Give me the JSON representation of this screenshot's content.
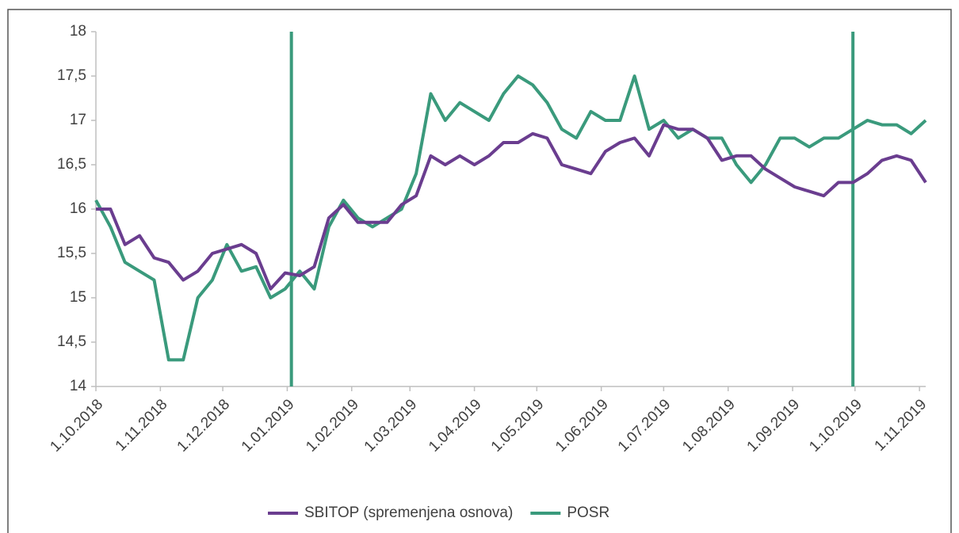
{
  "chart_data": {
    "type": "line",
    "x": [
      "2018-10-01",
      "2018-10-08",
      "2018-10-15",
      "2018-10-22",
      "2018-10-29",
      "2018-11-05",
      "2018-11-12",
      "2018-11-19",
      "2018-11-26",
      "2018-12-03",
      "2018-12-10",
      "2018-12-17",
      "2018-12-24",
      "2018-12-31",
      "2019-01-07",
      "2019-01-14",
      "2019-01-21",
      "2019-01-28",
      "2019-02-04",
      "2019-02-11",
      "2019-02-18",
      "2019-02-25",
      "2019-03-04",
      "2019-03-11",
      "2019-03-18",
      "2019-03-25",
      "2019-04-01",
      "2019-04-08",
      "2019-04-15",
      "2019-04-22",
      "2019-04-29",
      "2019-05-06",
      "2019-05-13",
      "2019-05-20",
      "2019-05-27",
      "2019-06-03",
      "2019-06-10",
      "2019-06-17",
      "2019-06-24",
      "2019-07-01",
      "2019-07-08",
      "2019-07-15",
      "2019-07-22",
      "2019-07-29",
      "2019-08-05",
      "2019-08-12",
      "2019-08-19",
      "2019-08-26",
      "2019-09-02",
      "2019-09-09",
      "2019-09-16",
      "2019-09-23",
      "2019-09-30",
      "2019-10-07",
      "2019-10-14",
      "2019-10-21",
      "2019-10-28",
      "2019-11-04"
    ],
    "series": [
      {
        "name": "SBITOP (spremenjena osnova)",
        "color": "#6a3d8f",
        "values": [
          16.0,
          16.0,
          15.6,
          15.7,
          15.45,
          15.4,
          15.2,
          15.3,
          15.5,
          15.55,
          15.6,
          15.5,
          15.1,
          15.28,
          15.25,
          15.35,
          15.9,
          16.05,
          15.85,
          15.85,
          15.85,
          16.05,
          16.15,
          16.6,
          16.5,
          16.6,
          16.5,
          16.6,
          16.75,
          16.75,
          16.85,
          16.8,
          16.5,
          16.45,
          16.4,
          16.65,
          16.75,
          16.8,
          16.6,
          16.95,
          16.9,
          16.9,
          16.8,
          16.55,
          16.6,
          16.6,
          16.45,
          16.35,
          16.25,
          16.2,
          16.15,
          16.3,
          16.3,
          16.4,
          16.55,
          16.6,
          16.55,
          16.3
        ]
      },
      {
        "name": "POSR",
        "color": "#3a9a7c",
        "values": [
          16.1,
          15.8,
          15.4,
          15.3,
          15.2,
          14.3,
          14.3,
          15.0,
          15.2,
          15.6,
          15.3,
          15.35,
          15.0,
          15.1,
          15.3,
          15.1,
          15.8,
          16.1,
          15.9,
          15.8,
          15.9,
          16.0,
          16.4,
          17.3,
          17.0,
          17.2,
          17.1,
          17.0,
          17.3,
          17.5,
          17.4,
          17.2,
          16.9,
          16.8,
          17.1,
          17.0,
          17.0,
          17.5,
          16.9,
          17.0,
          16.8,
          16.9,
          16.8,
          16.8,
          16.5,
          16.3,
          16.5,
          16.8,
          16.8,
          16.7,
          16.8,
          16.8,
          16.9,
          17.0,
          16.95,
          16.95,
          16.85,
          17.0
        ]
      }
    ],
    "vlines": {
      "x": [
        "2019-01-03",
        "2019-09-30"
      ],
      "color": "#3a9a7c"
    },
    "xlim": [
      "2018-10-01",
      "2019-11-04"
    ],
    "xticks": [
      {
        "value": "2018-10-01",
        "label": "1.10.2018"
      },
      {
        "value": "2018-11-01",
        "label": "1.11.2018"
      },
      {
        "value": "2018-12-01",
        "label": "1.12.2018"
      },
      {
        "value": "2019-01-01",
        "label": "1.01.2019"
      },
      {
        "value": "2019-02-01",
        "label": "1.02.2019"
      },
      {
        "value": "2019-03-01",
        "label": "1.03.2019"
      },
      {
        "value": "2019-04-01",
        "label": "1.04.2019"
      },
      {
        "value": "2019-05-01",
        "label": "1.05.2019"
      },
      {
        "value": "2019-06-01",
        "label": "1.06.2019"
      },
      {
        "value": "2019-07-01",
        "label": "1.07.2019"
      },
      {
        "value": "2019-08-01",
        "label": "1.08.2019"
      },
      {
        "value": "2019-09-01",
        "label": "1.09.2019"
      },
      {
        "value": "2019-10-01",
        "label": "1.10.2019"
      },
      {
        "value": "2019-11-01",
        "label": "1.11.2019"
      }
    ],
    "ylim": [
      14,
      18
    ],
    "yticks": [
      14,
      {
        "value": 14.5,
        "label": "14,5"
      },
      15,
      {
        "value": 15.5,
        "label": "15,5"
      },
      16,
      {
        "value": 16.5,
        "label": "16,5"
      },
      17,
      {
        "value": 17.5,
        "label": "17,5"
      },
      18
    ]
  }
}
